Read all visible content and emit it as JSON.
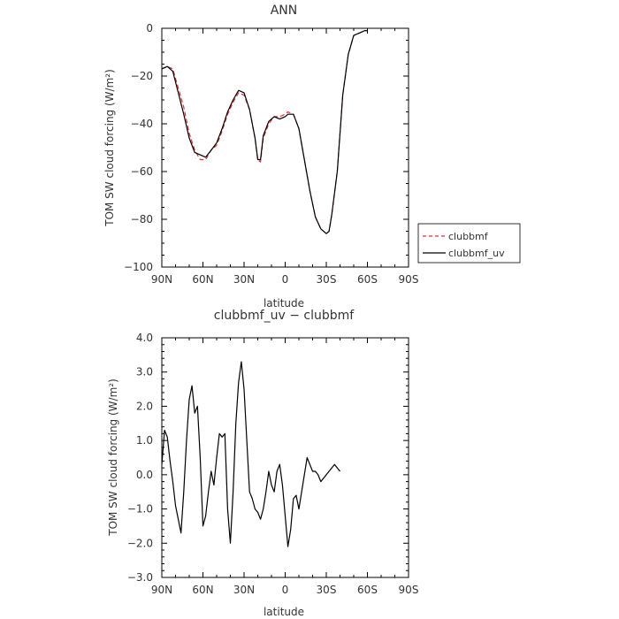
{
  "chart_data": [
    {
      "type": "line",
      "title": "ANN",
      "xlabel": "latitude",
      "ylabel": "TOM SW cloud forcing (W/m²)",
      "xlim": [
        90,
        -90
      ],
      "ylim": [
        -100,
        0
      ],
      "x_ticks": [
        90,
        60,
        30,
        0,
        -30,
        -60,
        -90
      ],
      "x_tick_labels": [
        "90N",
        "60N",
        "30N",
        "0",
        "30S",
        "60S",
        "90S"
      ],
      "y_ticks": [
        0,
        -20,
        -40,
        -60,
        -80,
        -100
      ],
      "y_tick_labels": [
        "0",
        "−20",
        "−40",
        "−60",
        "−80",
        "−100"
      ],
      "legend": {
        "placement": "outside-right"
      },
      "series": [
        {
          "name": "clubbmf",
          "color": "#e03030",
          "dash": "dashed",
          "points": [
            [
              90,
              -17
            ],
            [
              86,
              -16
            ],
            [
              82,
              -17
            ],
            [
              78,
              -25
            ],
            [
              74,
              -33
            ],
            [
              70,
              -44
            ],
            [
              66,
              -51
            ],
            [
              62,
              -55
            ],
            [
              58,
              -55
            ],
            [
              54,
              -51
            ],
            [
              50,
              -49
            ],
            [
              46,
              -43
            ],
            [
              42,
              -36
            ],
            [
              38,
              -31
            ],
            [
              34,
              -27
            ],
            [
              30,
              -28
            ],
            [
              26,
              -34
            ],
            [
              22,
              -46
            ],
            [
              20,
              -55
            ],
            [
              18,
              -56
            ],
            [
              16,
              -46
            ],
            [
              12,
              -40
            ],
            [
              8,
              -37
            ],
            [
              4,
              -37
            ],
            [
              0,
              -36
            ],
            [
              -2,
              -35
            ],
            [
              -6,
              -36
            ],
            [
              -10,
              -42
            ],
            [
              -14,
              -55
            ],
            [
              -18,
              -68
            ],
            [
              -22,
              -79
            ],
            [
              -26,
              -84
            ],
            [
              -30,
              -86
            ],
            [
              -32,
              -85
            ],
            [
              -34,
              -78
            ],
            [
              -38,
              -60
            ],
            [
              -42,
              -28
            ],
            [
              -46,
              -11
            ],
            [
              -50,
              -3
            ],
            [
              -54,
              -2
            ],
            [
              -58,
              -1
            ],
            [
              -60,
              -1
            ]
          ]
        },
        {
          "name": "clubbmf_uv",
          "color": "#000000",
          "dash": "solid",
          "points": [
            [
              90,
              -17
            ],
            [
              86,
              -16
            ],
            [
              82,
              -18
            ],
            [
              78,
              -27
            ],
            [
              74,
              -36
            ],
            [
              70,
              -46
            ],
            [
              66,
              -52
            ],
            [
              62,
              -53
            ],
            [
              58,
              -54
            ],
            [
              54,
              -51
            ],
            [
              50,
              -48
            ],
            [
              46,
              -42
            ],
            [
              42,
              -35
            ],
            [
              38,
              -30
            ],
            [
              34,
              -26
            ],
            [
              30,
              -27
            ],
            [
              26,
              -34
            ],
            [
              22,
              -46
            ],
            [
              20,
              -55
            ],
            [
              18,
              -55
            ],
            [
              16,
              -45
            ],
            [
              12,
              -39
            ],
            [
              8,
              -37
            ],
            [
              4,
              -38
            ],
            [
              0,
              -37
            ],
            [
              -2,
              -36
            ],
            [
              -6,
              -36
            ],
            [
              -10,
              -42
            ],
            [
              -14,
              -55
            ],
            [
              -18,
              -68
            ],
            [
              -22,
              -79
            ],
            [
              -26,
              -84
            ],
            [
              -30,
              -86
            ],
            [
              -32,
              -85
            ],
            [
              -34,
              -78
            ],
            [
              -38,
              -60
            ],
            [
              -42,
              -28
            ],
            [
              -46,
              -11
            ],
            [
              -50,
              -3
            ],
            [
              -54,
              -2
            ],
            [
              -58,
              -1
            ],
            [
              -60,
              -1
            ]
          ]
        }
      ]
    },
    {
      "type": "line",
      "title": "clubbmf_uv − clubbmf",
      "xlabel": "latitude",
      "ylabel": "TOM SW cloud forcing (W/m²)",
      "xlim": [
        90,
        -90
      ],
      "ylim": [
        -3,
        4
      ],
      "x_ticks": [
        90,
        60,
        30,
        0,
        -30,
        -60,
        -90
      ],
      "x_tick_labels": [
        "90N",
        "60N",
        "30N",
        "0",
        "30S",
        "60S",
        "90S"
      ],
      "y_ticks": [
        4,
        3,
        2,
        1,
        0,
        -1,
        -2,
        -3
      ],
      "y_tick_labels": [
        "4.0",
        "3.0",
        "2.0",
        "1.0",
        "0.0",
        "−1.0",
        "−2.0",
        "−3.0"
      ],
      "series": [
        {
          "color": "#000000",
          "dash": "solid",
          "points": [
            [
              90,
              0.3
            ],
            [
              88,
              1.3
            ],
            [
              86,
              1.1
            ],
            [
              84,
              0.4
            ],
            [
              82,
              -0.2
            ],
            [
              80,
              -0.9
            ],
            [
              78,
              -1.3
            ],
            [
              76,
              -1.7
            ],
            [
              74,
              -0.5
            ],
            [
              72,
              1.0
            ],
            [
              70,
              2.2
            ],
            [
              68,
              2.6
            ],
            [
              66,
              1.8
            ],
            [
              64,
              2.0
            ],
            [
              62,
              0.5
            ],
            [
              60,
              -1.5
            ],
            [
              58,
              -1.2
            ],
            [
              56,
              -0.5
            ],
            [
              54,
              0.1
            ],
            [
              52,
              -0.3
            ],
            [
              50,
              0.5
            ],
            [
              48,
              1.2
            ],
            [
              46,
              1.1
            ],
            [
              44,
              1.2
            ],
            [
              42,
              -1.0
            ],
            [
              40,
              -2.0
            ],
            [
              38,
              -0.5
            ],
            [
              36,
              1.5
            ],
            [
              34,
              2.7
            ],
            [
              32,
              3.3
            ],
            [
              30,
              2.5
            ],
            [
              28,
              1.0
            ],
            [
              26,
              -0.5
            ],
            [
              24,
              -0.7
            ],
            [
              22,
              -1.0
            ],
            [
              20,
              -1.1
            ],
            [
              18,
              -1.3
            ],
            [
              16,
              -1.0
            ],
            [
              14,
              -0.5
            ],
            [
              12,
              0.1
            ],
            [
              10,
              -0.3
            ],
            [
              8,
              -0.5
            ],
            [
              6,
              0.1
            ],
            [
              4,
              0.3
            ],
            [
              2,
              -0.3
            ],
            [
              0,
              -1.2
            ],
            [
              -2,
              -2.1
            ],
            [
              -4,
              -1.6
            ],
            [
              -6,
              -0.7
            ],
            [
              -8,
              -0.6
            ],
            [
              -10,
              -1.0
            ],
            [
              -12,
              -0.5
            ],
            [
              -14,
              0.0
            ],
            [
              -16,
              0.5
            ],
            [
              -18,
              0.3
            ],
            [
              -20,
              0.1
            ],
            [
              -22,
              0.1
            ],
            [
              -24,
              0.0
            ],
            [
              -26,
              -0.2
            ],
            [
              -28,
              -0.1
            ],
            [
              -30,
              0.0
            ],
            [
              -32,
              0.1
            ],
            [
              -34,
              0.2
            ],
            [
              -36,
              0.3
            ],
            [
              -38,
              0.2
            ],
            [
              -40,
              0.1
            ]
          ]
        }
      ]
    }
  ]
}
